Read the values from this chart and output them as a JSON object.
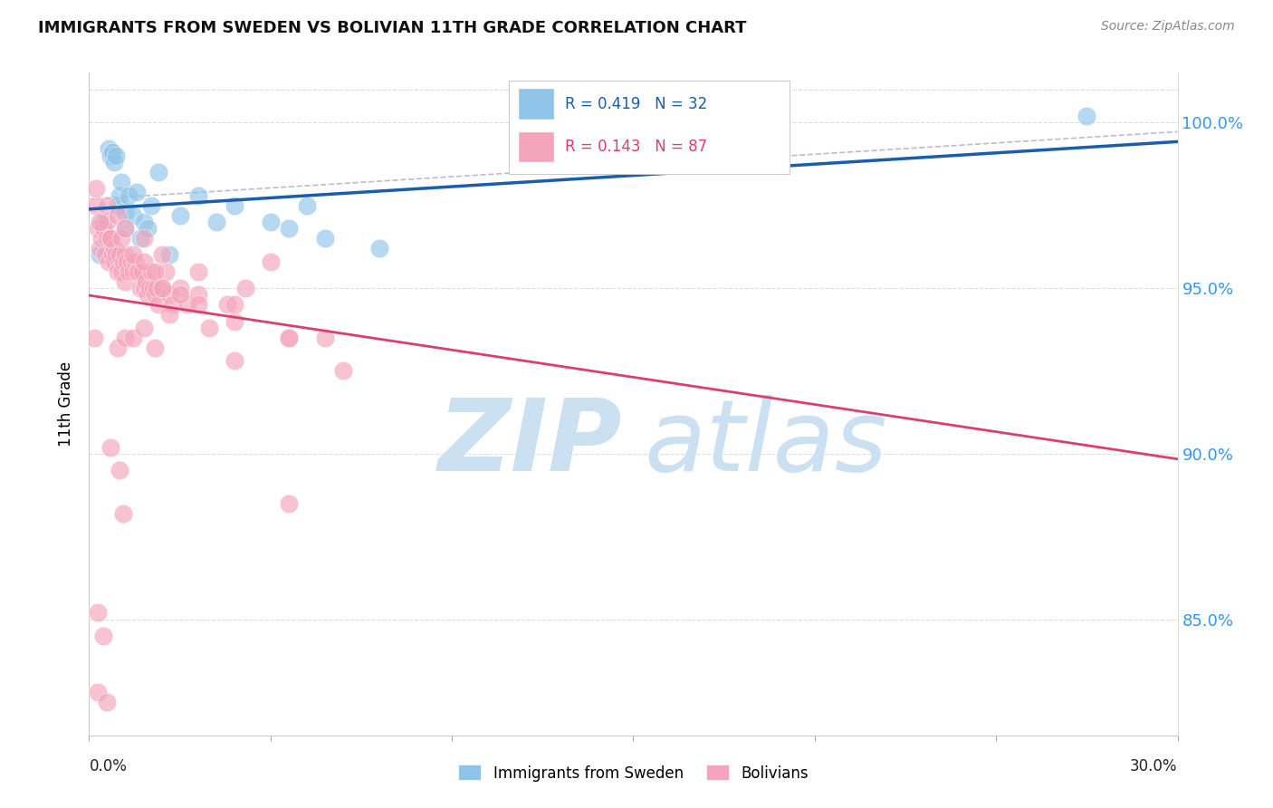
{
  "title": "IMMIGRANTS FROM SWEDEN VS BOLIVIAN 11TH GRADE CORRELATION CHART",
  "source": "Source: ZipAtlas.com",
  "ylabel": "11th Grade",
  "xlim": [
    0.0,
    30.0
  ],
  "ylim": [
    81.5,
    101.5
  ],
  "yticks": [
    85.0,
    90.0,
    95.0,
    100.0
  ],
  "ytick_labels": [
    "85.0%",
    "90.0%",
    "95.0%",
    "100.0%"
  ],
  "legend_r1": "R = 0.419",
  "legend_n1": "N = 32",
  "legend_r2": "R = 0.143",
  "legend_n2": "N = 87",
  "color_sweden": "#90C4E8",
  "color_bolivia": "#F4A4BC",
  "color_sweden_line": "#1A5DAA",
  "color_bolivia_line": "#D94070",
  "color_dashed": "#AAAACC",
  "watermark_color": "#CBE0F0",
  "label_sweden": "Immigrants from Sweden",
  "label_bolivia": "Bolivians",
  "sweden_x": [
    0.3,
    0.4,
    0.55,
    0.6,
    0.65,
    0.7,
    0.75,
    0.8,
    0.85,
    0.9,
    1.0,
    1.0,
    1.1,
    1.2,
    1.3,
    1.4,
    1.5,
    1.6,
    1.7,
    1.9,
    2.2,
    2.5,
    3.0,
    3.5,
    4.0,
    5.0,
    5.5,
    6.0,
    6.5,
    8.0,
    14.5,
    27.5
  ],
  "sweden_y": [
    96.0,
    97.0,
    99.2,
    99.0,
    99.1,
    98.8,
    99.0,
    97.5,
    97.8,
    98.2,
    97.3,
    96.8,
    97.8,
    97.2,
    97.9,
    96.5,
    97.0,
    96.8,
    97.5,
    98.5,
    96.0,
    97.2,
    97.8,
    97.0,
    97.5,
    97.0,
    96.8,
    97.5,
    96.5,
    96.2,
    99.0,
    100.2
  ],
  "bolivia_x": [
    0.15,
    0.2,
    0.25,
    0.3,
    0.35,
    0.4,
    0.45,
    0.5,
    0.5,
    0.55,
    0.6,
    0.65,
    0.7,
    0.7,
    0.75,
    0.8,
    0.85,
    0.9,
    0.95,
    1.0,
    1.0,
    1.05,
    1.1,
    1.15,
    1.2,
    1.25,
    1.3,
    1.35,
    1.4,
    1.45,
    1.5,
    1.55,
    1.6,
    1.65,
    1.7,
    1.75,
    1.8,
    1.85,
    1.9,
    2.0,
    2.1,
    2.2,
    2.3,
    2.5,
    2.7,
    3.0,
    3.3,
    3.8,
    4.0,
    4.3,
    5.0,
    5.5,
    0.25,
    0.5,
    0.8,
    1.0,
    1.2,
    1.5,
    1.8,
    2.2,
    0.3,
    0.6,
    0.9,
    1.2,
    1.5,
    1.8,
    2.0,
    2.5,
    3.0,
    4.0,
    5.5,
    6.5,
    0.2,
    0.5,
    0.8,
    1.0,
    1.5,
    2.0,
    3.0,
    4.0,
    5.5,
    7.0,
    0.25,
    0.4,
    0.6,
    0.85,
    0.95
  ],
  "bolivia_y": [
    93.5,
    97.5,
    96.8,
    96.2,
    96.5,
    96.8,
    96.0,
    97.0,
    96.5,
    95.8,
    96.5,
    96.0,
    96.2,
    95.8,
    96.0,
    95.5,
    96.0,
    95.5,
    95.8,
    96.0,
    95.2,
    95.8,
    95.5,
    95.8,
    95.5,
    95.8,
    95.5,
    95.5,
    95.0,
    95.5,
    95.0,
    95.2,
    94.8,
    95.0,
    95.5,
    95.0,
    94.8,
    95.0,
    94.5,
    95.0,
    95.5,
    94.8,
    94.5,
    95.0,
    94.5,
    94.8,
    93.8,
    94.5,
    92.8,
    95.0,
    95.8,
    88.5,
    82.8,
    82.5,
    93.2,
    93.5,
    93.5,
    93.8,
    93.2,
    94.2,
    97.0,
    96.5,
    96.5,
    96.0,
    95.8,
    95.5,
    95.0,
    94.8,
    94.5,
    94.0,
    93.5,
    93.5,
    98.0,
    97.5,
    97.2,
    96.8,
    96.5,
    96.0,
    95.5,
    94.5,
    93.5,
    92.5,
    85.2,
    84.5,
    90.2,
    89.5,
    88.2
  ]
}
